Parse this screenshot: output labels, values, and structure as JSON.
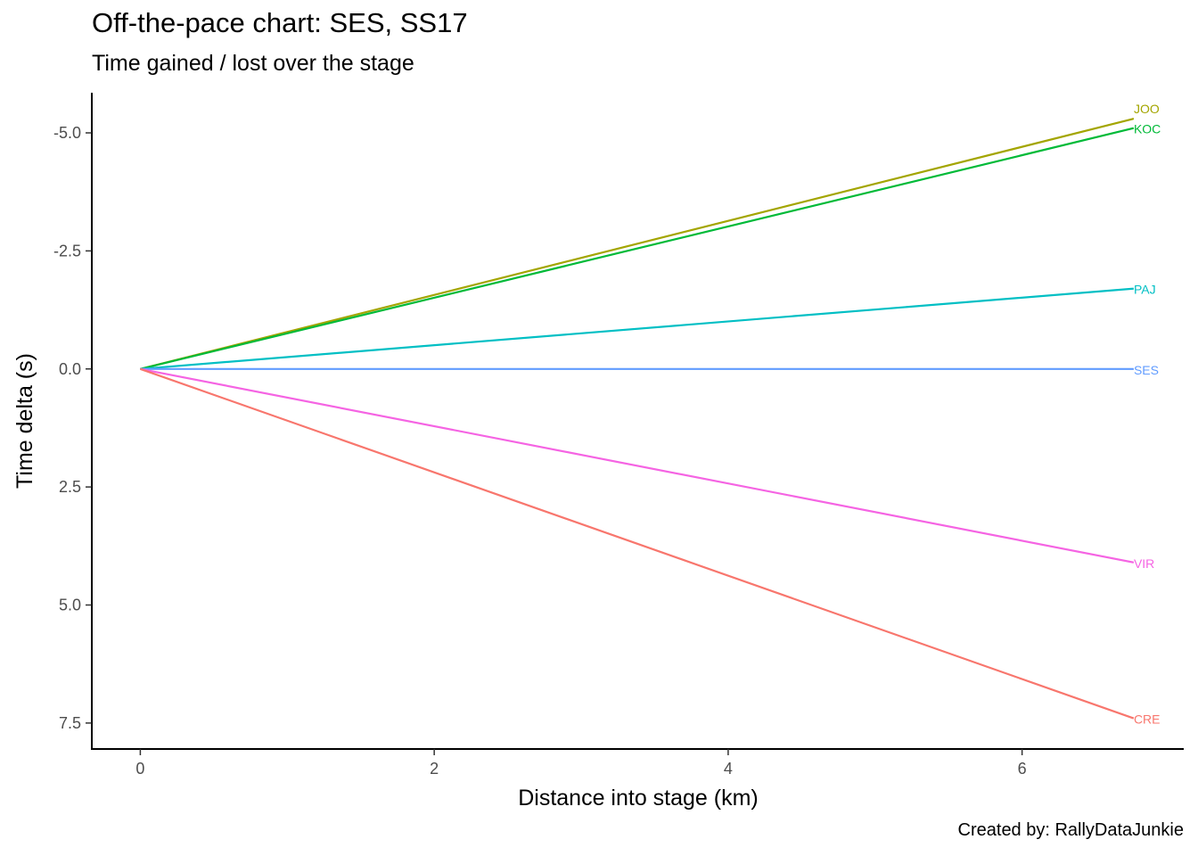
{
  "chart_data": {
    "type": "line",
    "title": "Off-the-pace chart: SES, SS17",
    "subtitle": "Time gained / lost over the stage",
    "caption": "Created by: RallyDataJunkie",
    "xlabel": "Distance into stage (km)",
    "ylabel": "Time delta (s)",
    "xlim": [
      -0.33,
      7.1
    ],
    "ylim": [
      8.05,
      -5.85
    ],
    "y_reversed": true,
    "x_ticks": [
      {
        "value": 0,
        "label": "0"
      },
      {
        "value": 2,
        "label": "2"
      },
      {
        "value": 4,
        "label": "4"
      },
      {
        "value": 6,
        "label": "6"
      }
    ],
    "y_ticks": [
      {
        "value": -5.0,
        "label": "-5.0"
      },
      {
        "value": -2.5,
        "label": "-2.5"
      },
      {
        "value": 0.0,
        "label": "0.0"
      },
      {
        "value": 2.5,
        "label": "2.5"
      },
      {
        "value": 5.0,
        "label": "5.0"
      },
      {
        "value": 7.5,
        "label": "7.5"
      }
    ],
    "grid": false,
    "legend": "none (direct labels at line ends)",
    "series": [
      {
        "name": "JOO",
        "color": "#A3A500",
        "x": [
          0,
          6.76
        ],
        "y": [
          0,
          -5.3
        ]
      },
      {
        "name": "KOC",
        "color": "#00BA38",
        "x": [
          0,
          6.76
        ],
        "y": [
          0,
          -5.1
        ]
      },
      {
        "name": "PAJ",
        "color": "#00BFC4",
        "x": [
          0,
          6.76
        ],
        "y": [
          0,
          -1.7
        ]
      },
      {
        "name": "SES",
        "color": "#619CFF",
        "x": [
          0,
          6.76
        ],
        "y": [
          0,
          0.0
        ]
      },
      {
        "name": "VIR",
        "color": "#F564E3",
        "x": [
          0,
          6.76
        ],
        "y": [
          0,
          4.1
        ]
      },
      {
        "name": "CRE",
        "color": "#F8766D",
        "x": [
          0,
          6.76
        ],
        "y": [
          0,
          7.4
        ]
      }
    ]
  }
}
